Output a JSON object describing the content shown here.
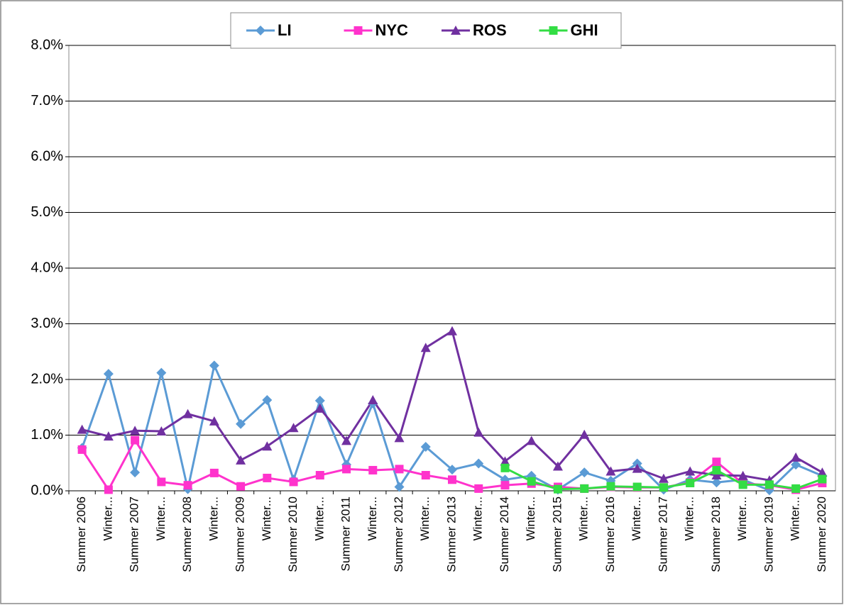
{
  "chart_data": {
    "type": "line",
    "categories": [
      "Summer 2006",
      "Winter...",
      "Summer 2007",
      "Winter...",
      "Summer 2008",
      "Winter...",
      "Summer 2009",
      "Winter...",
      "Summer 2010",
      "Winter...",
      "Summer 2011",
      "Winter...",
      "Summer 2012",
      "Winter...",
      "Summer 2013",
      "Winter...",
      "Summer 2014",
      "Winter...",
      "Summer 2015",
      "Winter...",
      "Summer 2016",
      "Winter...",
      "Summer 2017",
      "Winter...",
      "Summer 2018",
      "Winter...",
      "Summer 2019",
      "Winter...",
      "Summer 2020"
    ],
    "series": [
      {
        "name": "LI",
        "color": "#5b9bd5",
        "marker": "diamond",
        "values": [
          0.77,
          2.1,
          0.33,
          2.12,
          0.03,
          2.25,
          1.2,
          1.63,
          0.2,
          1.62,
          0.47,
          1.57,
          0.07,
          0.79,
          0.38,
          0.49,
          0.2,
          0.27,
          0.02,
          0.33,
          0.18,
          0.49,
          0.02,
          0.2,
          0.15,
          0.2,
          0.01,
          0.47,
          0.27
        ]
      },
      {
        "name": "NYC",
        "color": "#ff33cc",
        "marker": "square",
        "values": [
          0.74,
          0.02,
          0.91,
          0.16,
          0.1,
          0.32,
          0.08,
          0.23,
          0.16,
          0.28,
          0.39,
          0.37,
          0.39,
          0.28,
          0.2,
          0.04,
          0.1,
          0.13,
          0.07,
          0.04,
          0.07,
          0.06,
          0.06,
          0.15,
          0.52,
          0.13,
          0.1,
          0.02,
          0.14
        ]
      },
      {
        "name": "ROS",
        "color": "#7030a0",
        "marker": "triangle",
        "values": [
          1.1,
          0.98,
          1.08,
          1.07,
          1.38,
          1.25,
          0.55,
          0.8,
          1.13,
          1.48,
          0.9,
          1.63,
          0.95,
          2.57,
          2.87,
          1.05,
          0.53,
          0.9,
          0.44,
          1.01,
          0.35,
          0.4,
          0.22,
          0.35,
          0.28,
          0.27,
          0.19,
          0.6,
          0.33
        ]
      },
      {
        "name": "GHI",
        "color": "#33dd44",
        "marker": "square",
        "values": [
          null,
          null,
          null,
          null,
          null,
          null,
          null,
          null,
          null,
          null,
          null,
          null,
          null,
          null,
          null,
          null,
          0.41,
          0.17,
          0.03,
          0.04,
          0.08,
          0.07,
          0.06,
          0.14,
          0.37,
          0.11,
          0.11,
          0.04,
          0.21
        ]
      }
    ],
    "ylim": [
      0,
      8
    ],
    "yticks": [
      {
        "value": 0,
        "label": "0.0%"
      },
      {
        "value": 1,
        "label": "1.0%"
      },
      {
        "value": 2,
        "label": "2.0%"
      },
      {
        "value": 3,
        "label": "3.0%"
      },
      {
        "value": 4,
        "label": "4.0%"
      },
      {
        "value": 5,
        "label": "5.0%"
      },
      {
        "value": 6,
        "label": "6.0%"
      },
      {
        "value": 7,
        "label": "7.0%"
      },
      {
        "value": 8,
        "label": "8.0%"
      }
    ],
    "grid": true,
    "legend": "top"
  }
}
